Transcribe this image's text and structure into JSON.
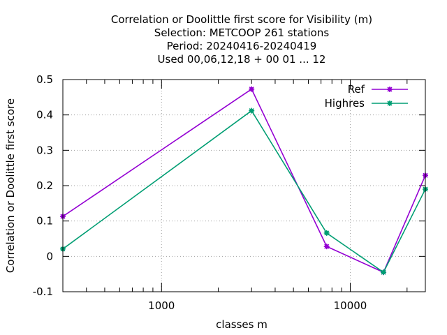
{
  "chart_data": {
    "type": "line",
    "title_lines": [
      "Correlation or Doolittle first score  for Visibility (m)",
      "Selection: METCOOP    261 stations",
      "Period: 20240416-20240419",
      "Used  00,06,12,18 + 00 01 ... 12"
    ],
    "xlabel": "classes m",
    "ylabel": "Correlation or Doolittle first score",
    "x_scale": "log",
    "xlim": [
      300,
      25000
    ],
    "ylim": [
      -0.1,
      0.5
    ],
    "x_ticks": [
      {
        "value": 1000,
        "label": "1000"
      },
      {
        "value": 10000,
        "label": "10000"
      }
    ],
    "x_minor_ticks": [
      400,
      500,
      600,
      700,
      800,
      900,
      2000,
      3000,
      4000,
      5000,
      6000,
      7000,
      8000,
      9000,
      20000
    ],
    "y_ticks": [
      {
        "value": -0.1,
        "label": "-0.1"
      },
      {
        "value": 0,
        "label": "0"
      },
      {
        "value": 0.1,
        "label": "0.1"
      },
      {
        "value": 0.2,
        "label": "0.2"
      },
      {
        "value": 0.3,
        "label": "0.3"
      },
      {
        "value": 0.4,
        "label": "0.4"
      },
      {
        "value": 0.5,
        "label": "0.5"
      }
    ],
    "grid": true,
    "legend_position": "top-right",
    "series": [
      {
        "name": "Ref",
        "color": "#9400d3",
        "x": [
          300,
          3000,
          7500,
          15000,
          25000
        ],
        "y": [
          0.113,
          0.473,
          0.028,
          -0.045,
          0.229
        ]
      },
      {
        "name": "Highres",
        "color": "#009e73",
        "x": [
          300,
          3000,
          7500,
          15000,
          25000
        ],
        "y": [
          0.021,
          0.412,
          0.066,
          -0.045,
          0.19
        ]
      }
    ]
  }
}
